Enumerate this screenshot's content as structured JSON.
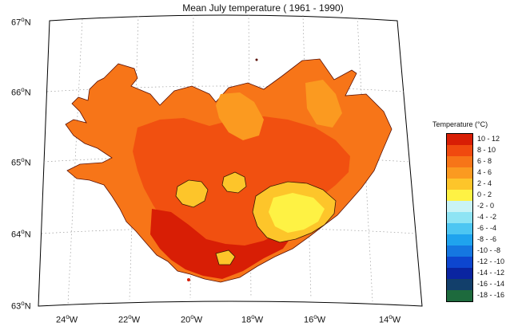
{
  "title": "Mean July temperature ( 1961 - 1990)",
  "latitude_labels": [
    {
      "deg": "67",
      "hemi": "N"
    },
    {
      "deg": "66",
      "hemi": "N"
    },
    {
      "deg": "65",
      "hemi": "N"
    },
    {
      "deg": "64",
      "hemi": "N"
    },
    {
      "deg": "63",
      "hemi": "N"
    }
  ],
  "longitude_labels": [
    {
      "deg": "24",
      "hemi": "W"
    },
    {
      "deg": "22",
      "hemi": "W"
    },
    {
      "deg": "20",
      "hemi": "W"
    },
    {
      "deg": "18",
      "hemi": "W"
    },
    {
      "deg": "16",
      "hemi": "W"
    },
    {
      "deg": "14",
      "hemi": "W"
    }
  ],
  "legend": {
    "title": "Temperature (°C)",
    "bins": [
      {
        "label": "10 - 12",
        "color": "#d81e05"
      },
      {
        "label": "8 - 10",
        "color": "#f04a0f"
      },
      {
        "label": "6 - 8",
        "color": "#f77518"
      },
      {
        "label": "4 - 6",
        "color": "#fb9a20"
      },
      {
        "label": "2 - 4",
        "color": "#fdc52a"
      },
      {
        "label": "0 - 2",
        "color": "#fef244"
      },
      {
        "label": "-2 - 0",
        "color": "#c9f3f6"
      },
      {
        "label": "-4 - -2",
        "color": "#8ee4f4"
      },
      {
        "label": "-6 - -4",
        "color": "#4dc6f2"
      },
      {
        "label": "-8 - -6",
        "color": "#1fa3ee"
      },
      {
        "label": "-10 - -8",
        "color": "#1577e1"
      },
      {
        "label": "-12 - -10",
        "color": "#0d46cf"
      },
      {
        "label": "-14 - -12",
        "color": "#0a24a0"
      },
      {
        "label": "-16 - -14",
        "color": "#123f6b"
      },
      {
        "label": "-18 - -16",
        "color": "#1d6a3d"
      }
    ]
  }
}
